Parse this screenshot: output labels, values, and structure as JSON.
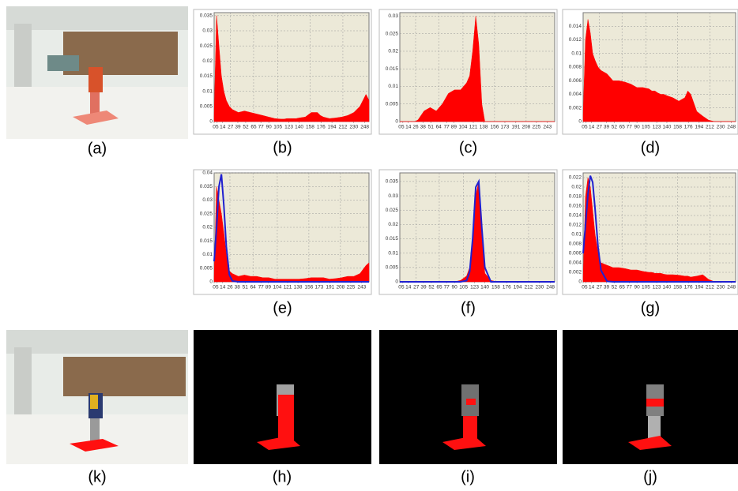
{
  "image_panels": [
    {
      "caption": "(a)"
    },
    {
      "caption": "(k)"
    },
    {
      "caption": "(h)"
    },
    {
      "caption": "(i)"
    },
    {
      "caption": "(j)"
    }
  ],
  "chart_data": [
    {
      "type": "area",
      "caption": "(b)",
      "x": [
        0,
        4,
        8,
        12,
        16,
        20,
        25,
        30,
        40,
        50,
        60,
        70,
        80,
        90,
        100,
        110,
        115,
        120,
        125,
        130,
        135,
        140,
        150,
        160,
        170,
        175,
        180,
        190,
        200,
        210,
        220,
        230,
        240,
        250,
        255
      ],
      "series": [
        {
          "kind": "area",
          "color": "#ff0000",
          "values": [
            0.002,
            0.035,
            0.025,
            0.015,
            0.01,
            0.007,
            0.005,
            0.004,
            0.003,
            0.0035,
            0.003,
            0.0025,
            0.002,
            0.0015,
            0.001,
            0.0008,
            0.0008,
            0.001,
            0.001,
            0.001,
            0.001,
            0.0012,
            0.0015,
            0.003,
            0.003,
            0.002,
            0.0015,
            0.001,
            0.0012,
            0.0015,
            0.002,
            0.003,
            0.005,
            0.009,
            0.007
          ]
        }
      ],
      "xlim": [
        0,
        255
      ],
      "ylim": [
        0,
        0.036
      ],
      "xticks": [
        0,
        5,
        14,
        27,
        39,
        52,
        65,
        77,
        90,
        105,
        123,
        140,
        158,
        176,
        194,
        212,
        230,
        248
      ],
      "yticks": [
        0,
        0.005,
        0.01,
        0.015,
        0.02,
        0.025,
        0.03,
        0.035
      ],
      "grid": true
    },
    {
      "type": "area",
      "caption": "(c)",
      "x": [
        0,
        4,
        8,
        12,
        16,
        20,
        25,
        30,
        40,
        50,
        60,
        70,
        80,
        90,
        100,
        110,
        115,
        120,
        125,
        130,
        135,
        140,
        150,
        160,
        170,
        175,
        180,
        190,
        200,
        210,
        220,
        230,
        240,
        250,
        255
      ],
      "series": [
        {
          "kind": "area",
          "color": "#ff0000",
          "values": [
            0,
            0,
            0,
            0,
            0,
            0,
            0,
            0.0005,
            0.003,
            0.004,
            0.003,
            0.005,
            0.008,
            0.009,
            0.009,
            0.011,
            0.013,
            0.02,
            0.03,
            0.022,
            0.005,
            0,
            0,
            0,
            0,
            0,
            0,
            0,
            0,
            0,
            0,
            0,
            0,
            0,
            0
          ]
        }
      ],
      "xlim": [
        0,
        255
      ],
      "ylim": [
        0,
        0.031
      ],
      "xticks": [
        0,
        5,
        14,
        26,
        38,
        51,
        64,
        77,
        89,
        104,
        121,
        138,
        156,
        173,
        191,
        208,
        225,
        243
      ],
      "yticks": [
        0,
        0.005,
        0.01,
        0.015,
        0.02,
        0.025,
        0.03
      ],
      "grid": true
    },
    {
      "type": "area",
      "caption": "(d)",
      "x": [
        0,
        4,
        8,
        12,
        16,
        20,
        25,
        30,
        40,
        50,
        60,
        70,
        80,
        90,
        100,
        110,
        115,
        120,
        125,
        130,
        135,
        140,
        150,
        160,
        170,
        175,
        180,
        190,
        200,
        210,
        220,
        230,
        240,
        250,
        255
      ],
      "series": [
        {
          "kind": "area",
          "color": "#ff0000",
          "values": [
            0.001,
            0.012,
            0.015,
            0.013,
            0.01,
            0.009,
            0.008,
            0.0075,
            0.007,
            0.006,
            0.006,
            0.0058,
            0.0055,
            0.005,
            0.005,
            0.0048,
            0.0045,
            0.0045,
            0.0042,
            0.004,
            0.004,
            0.0038,
            0.0035,
            0.003,
            0.0035,
            0.0045,
            0.004,
            0.0015,
            0.0008,
            0.0002,
            0,
            0,
            0,
            0,
            0
          ]
        }
      ],
      "xlim": [
        0,
        255
      ],
      "ylim": [
        0,
        0.016
      ],
      "xticks": [
        0,
        5,
        14,
        27,
        39,
        52,
        65,
        77,
        90,
        105,
        123,
        140,
        158,
        176,
        194,
        212,
        230,
        248
      ],
      "yticks": [
        0,
        0.002,
        0.004,
        0.006,
        0.008,
        0.01,
        0.012,
        0.014
      ],
      "grid": true
    },
    {
      "type": "area",
      "caption": "(e)",
      "x": [
        0,
        4,
        8,
        12,
        16,
        20,
        25,
        30,
        40,
        50,
        60,
        70,
        80,
        90,
        100,
        110,
        115,
        120,
        125,
        130,
        135,
        140,
        150,
        160,
        170,
        175,
        180,
        190,
        200,
        210,
        220,
        230,
        240,
        250,
        255
      ],
      "series": [
        {
          "kind": "area",
          "color": "#ff0000",
          "values": [
            0.002,
            0.035,
            0.03,
            0.025,
            0.018,
            0.01,
            0.004,
            0.003,
            0.002,
            0.0025,
            0.002,
            0.002,
            0.0015,
            0.0015,
            0.001,
            0.001,
            0.001,
            0.001,
            0.001,
            0.001,
            0.001,
            0.001,
            0.0012,
            0.0015,
            0.0015,
            0.0015,
            0.0015,
            0.001,
            0.0012,
            0.0015,
            0.002,
            0.002,
            0.003,
            0.006,
            0.007
          ]
        },
        {
          "kind": "line",
          "color": "#2020d0",
          "values": [
            0.0075,
            0.02,
            0.035,
            0.0395,
            0.028,
            0.013,
            0.0026,
            0.0003,
            0,
            0,
            0,
            0,
            0,
            0,
            0,
            0,
            0,
            0,
            0,
            0,
            0,
            0,
            0,
            0,
            0,
            0,
            0,
            0,
            0,
            0,
            0,
            0,
            0,
            0,
            0
          ]
        }
      ],
      "xlim": [
        0,
        255
      ],
      "ylim": [
        0,
        0.04
      ],
      "xticks": [
        0,
        5,
        14,
        26,
        38,
        51,
        64,
        77,
        89,
        104,
        121,
        138,
        156,
        173,
        191,
        208,
        225,
        243
      ],
      "yticks": [
        0,
        0.005,
        0.01,
        0.015,
        0.02,
        0.025,
        0.03,
        0.035,
        0.04
      ],
      "grid": true
    },
    {
      "type": "area",
      "caption": "(f)",
      "x": [
        0,
        4,
        8,
        12,
        16,
        20,
        25,
        30,
        40,
        50,
        60,
        70,
        80,
        90,
        100,
        110,
        115,
        120,
        125,
        130,
        135,
        140,
        150,
        160,
        170,
        175,
        180,
        190,
        200,
        210,
        220,
        230,
        240,
        250,
        255
      ],
      "series": [
        {
          "kind": "area",
          "color": "#ff0000",
          "values": [
            0,
            0,
            0,
            0,
            0,
            0,
            0,
            0,
            0,
            0,
            0,
            0,
            0,
            0,
            0.0005,
            0.002,
            0.005,
            0.012,
            0.03,
            0.035,
            0.015,
            0.003,
            0.0005,
            0,
            0,
            0,
            0,
            0,
            0,
            0,
            0,
            0,
            0,
            0,
            0
          ]
        },
        {
          "kind": "line",
          "color": "#2020d0",
          "values": [
            0,
            0,
            0,
            0,
            0,
            0,
            0,
            0,
            0,
            0,
            0,
            0,
            0,
            0,
            0,
            0.0004,
            0.0035,
            0.015,
            0.033,
            0.035,
            0.0187,
            0.005,
            0,
            0,
            0,
            0,
            0,
            0,
            0,
            0,
            0,
            0,
            0,
            0,
            0
          ]
        }
      ],
      "xlim": [
        0,
        255
      ],
      "ylim": [
        0,
        0.038
      ],
      "xticks": [
        0,
        5,
        14,
        27,
        39,
        52,
        65,
        77,
        90,
        105,
        123,
        140,
        158,
        176,
        194,
        212,
        230,
        248
      ],
      "yticks": [
        0,
        0.005,
        0.01,
        0.015,
        0.02,
        0.025,
        0.03,
        0.035
      ],
      "grid": true
    },
    {
      "type": "area",
      "caption": "(g)",
      "x": [
        0,
        4,
        8,
        12,
        16,
        20,
        25,
        30,
        40,
        50,
        60,
        70,
        80,
        90,
        100,
        110,
        115,
        120,
        125,
        130,
        135,
        140,
        150,
        160,
        170,
        175,
        180,
        190,
        200,
        210,
        220,
        230,
        240,
        250,
        255
      ],
      "series": [
        {
          "kind": "area",
          "color": "#ff0000",
          "values": [
            0.001,
            0.018,
            0.022,
            0.02,
            0.015,
            0.01,
            0.006,
            0.004,
            0.0035,
            0.003,
            0.003,
            0.0028,
            0.0025,
            0.0025,
            0.0022,
            0.002,
            0.002,
            0.0018,
            0.0018,
            0.0018,
            0.0016,
            0.0015,
            0.0015,
            0.0014,
            0.0012,
            0.0012,
            0.001,
            0.0012,
            0.0015,
            0.0005,
            0,
            0,
            0,
            0,
            0
          ]
        },
        {
          "kind": "line",
          "color": "#2020d0",
          "values": [
            0.006,
            0.012,
            0.0185,
            0.0224,
            0.021,
            0.0154,
            0.0073,
            0.0024,
            0.0001,
            0,
            0,
            0,
            0,
            0,
            0,
            0,
            0,
            0,
            0,
            0,
            0,
            0,
            0,
            0,
            0,
            0,
            0,
            0,
            0,
            0,
            0,
            0,
            0,
            0,
            0
          ]
        }
      ],
      "xlim": [
        0,
        255
      ],
      "ylim": [
        0,
        0.023
      ],
      "xticks": [
        0,
        5,
        14,
        27,
        39,
        52,
        65,
        77,
        90,
        105,
        123,
        140,
        158,
        176,
        194,
        212,
        230,
        248
      ],
      "yticks": [
        0,
        0.002,
        0.004,
        0.006,
        0.008,
        0.01,
        0.012,
        0.014,
        0.016,
        0.018,
        0.02,
        0.022
      ],
      "grid": true
    }
  ]
}
